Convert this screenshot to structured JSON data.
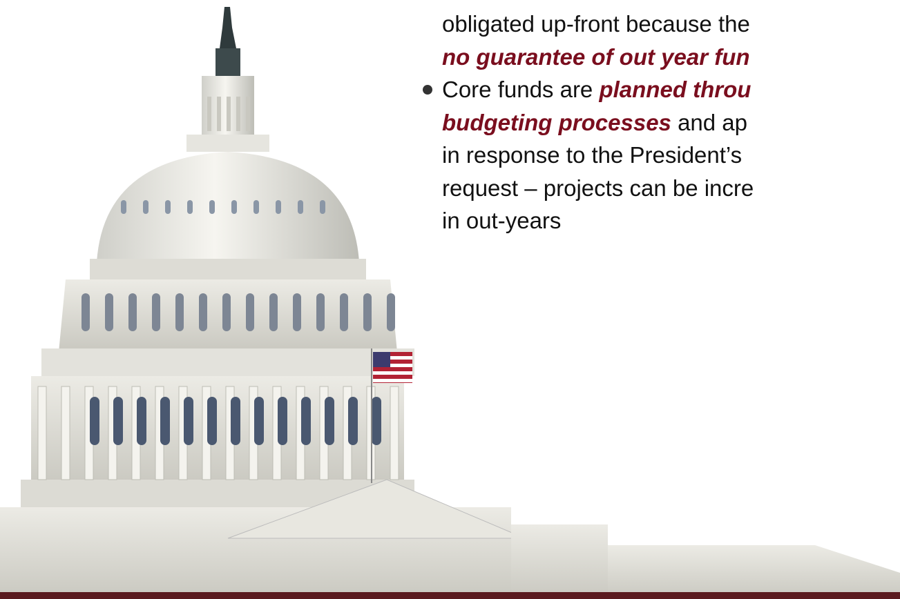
{
  "bullets": [
    {
      "lines": [
        [
          {
            "text": "obligated up-front because the",
            "emphasis": false
          }
        ],
        [
          {
            "text": "no guarantee of out year fun",
            "emphasis": true
          }
        ]
      ]
    },
    {
      "lines": [
        [
          {
            "text": "Core funds are ",
            "emphasis": false
          },
          {
            "text": "planned throu",
            "emphasis": true
          }
        ],
        [
          {
            "text": "budgeting processes",
            "emphasis": true
          },
          {
            "text": " and ap",
            "emphasis": false
          }
        ],
        [
          {
            "text": "in response to the President’s",
            "emphasis": false
          }
        ],
        [
          {
            "text": "request – projects can be incre",
            "emphasis": false
          }
        ],
        [
          {
            "text": "in out-years",
            "emphasis": false
          }
        ]
      ]
    }
  ]
}
